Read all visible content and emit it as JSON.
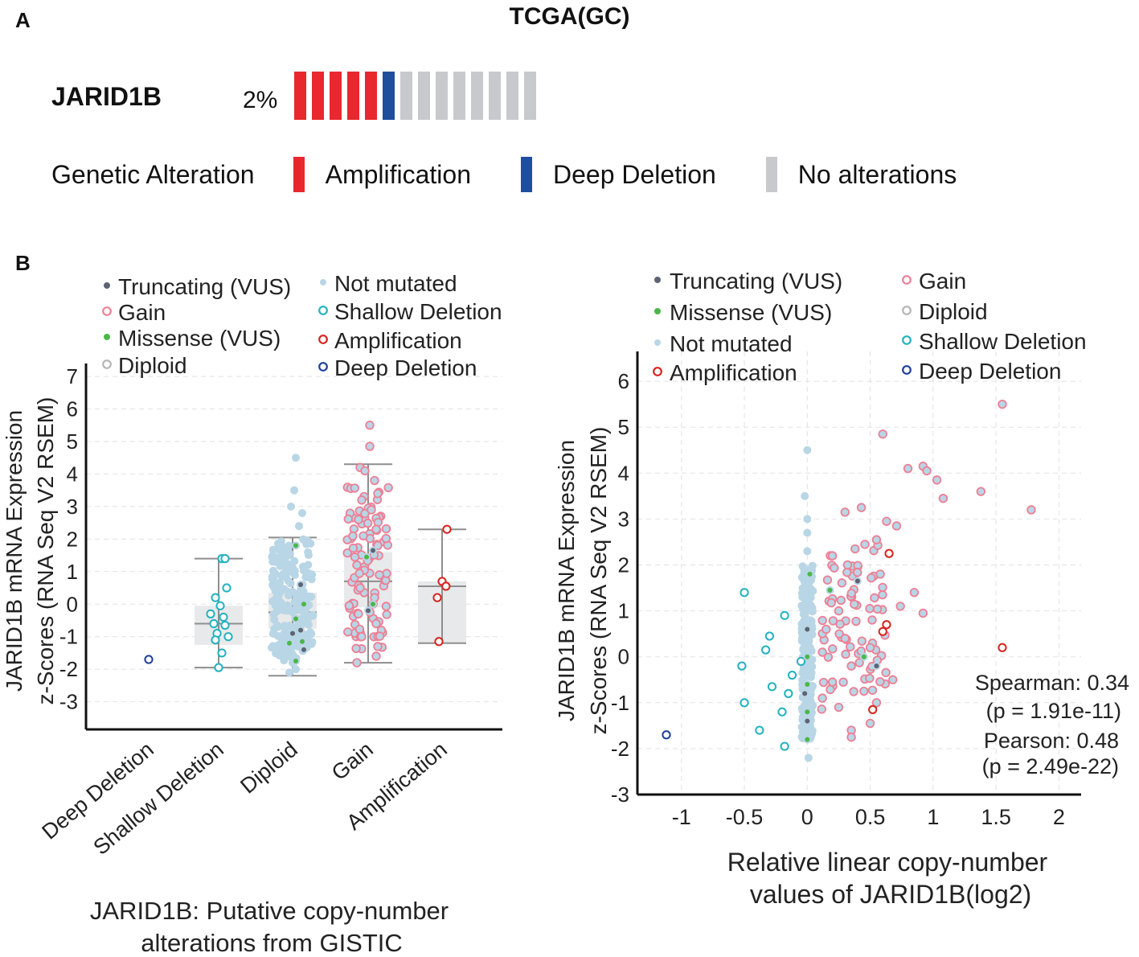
{
  "figure_title": "TCGA(GC)",
  "panels": {
    "a": "A",
    "b": "B"
  },
  "oncoprint": {
    "gene": "JARID1B",
    "percent": "2%",
    "bars": [
      "amplification",
      "amplification",
      "amplification",
      "amplification",
      "amplification",
      "deep_deletion",
      "none",
      "none",
      "none",
      "none",
      "none",
      "none",
      "none",
      "none"
    ],
    "legend_title": "Genetic Alteration",
    "legend": [
      {
        "label": "Amplification",
        "key": "amplification"
      },
      {
        "label": "Deep Deletion",
        "key": "deep_deletion"
      },
      {
        "label": "No alterations",
        "key": "none"
      }
    ]
  },
  "colors": {
    "amplification": "#e8282e",
    "deep_deletion": "#1f4e9c",
    "none": "#c8c9cd",
    "gain": "#ee7f94",
    "shallow": "#22b2bf",
    "diploid": "#b4b4b4",
    "not_mutated": "#b9d6e6",
    "truncating": "#5e6372",
    "missense": "#4bb748",
    "amp_open": "#d9221d",
    "deep_open": "#1c3f9c"
  },
  "chart_data": [
    {
      "type": "box",
      "id": "left",
      "ylabel": [
        "JARID1B mRNA Expression",
        "z-Scores (RNA Seq V2 RSEM)"
      ],
      "xlabel": [
        "JARID1B: Putative copy-number",
        "alterations from GISTIC"
      ],
      "ylim": [
        -3.85,
        7.15
      ],
      "yticks": [
        -3,
        -2,
        -1,
        0,
        1,
        2,
        3,
        4,
        5,
        6,
        7
      ],
      "categories": [
        "Deep Deletion",
        "Shallow Deletion",
        "Diploid",
        "Gain",
        "Amplification"
      ],
      "legend": [
        {
          "label": "Truncating (VUS)",
          "key": "truncating",
          "style": "dot"
        },
        {
          "label": "Gain",
          "key": "gain",
          "style": "ring"
        },
        {
          "label": "Missense (VUS)",
          "key": "missense",
          "style": "dot"
        },
        {
          "label": "Diploid",
          "key": "diploid",
          "style": "ring"
        },
        {
          "label": "Not mutated",
          "key": "not_mutated",
          "style": "dot"
        },
        {
          "label": "Shallow Deletion",
          "key": "shallow",
          "style": "ring"
        },
        {
          "label": "Amplification",
          "key": "amp_open",
          "style": "ring"
        },
        {
          "label": "Deep Deletion",
          "key": "deep_open",
          "style": "ring"
        }
      ],
      "boxes": [
        null,
        {
          "q1": -1.25,
          "median": -0.6,
          "q3": -0.05,
          "lo": -1.95,
          "hi": 1.4
        },
        {
          "q1": -0.75,
          "median": -0.25,
          "q3": 0.35,
          "lo": -2.2,
          "hi": 2.05
        },
        {
          "q1": -0.1,
          "median": 0.7,
          "q3": 1.6,
          "lo": -1.8,
          "hi": 4.3
        },
        {
          "q1": -1.2,
          "median": 0.55,
          "q3": 0.7,
          "lo": -1.2,
          "hi": 2.3
        }
      ],
      "points": [
        {
          "cat": 0,
          "dx": 0,
          "y": -1.7,
          "k": "deep_open"
        },
        {
          "cat": 1,
          "dx": 0.1,
          "y": 1.4,
          "k": "shallow"
        },
        {
          "cat": 1,
          "dx": 0.2,
          "y": 1.4,
          "k": "shallow"
        },
        {
          "cat": 1,
          "dx": 0.25,
          "y": 0.5,
          "k": "shallow"
        },
        {
          "cat": 1,
          "dx": -0.1,
          "y": 0.2,
          "k": "shallow"
        },
        {
          "cat": 1,
          "dx": 0.05,
          "y": -0.05,
          "k": "shallow"
        },
        {
          "cat": 1,
          "dx": -0.25,
          "y": -0.3,
          "k": "shallow"
        },
        {
          "cat": 1,
          "dx": 0.15,
          "y": -0.4,
          "k": "shallow"
        },
        {
          "cat": 1,
          "dx": -0.15,
          "y": -0.6,
          "k": "shallow"
        },
        {
          "cat": 1,
          "dx": 0.2,
          "y": -0.65,
          "k": "shallow"
        },
        {
          "cat": 1,
          "dx": -0.05,
          "y": -0.9,
          "k": "shallow"
        },
        {
          "cat": 1,
          "dx": 0.3,
          "y": -1.0,
          "k": "shallow"
        },
        {
          "cat": 1,
          "dx": -0.1,
          "y": -1.1,
          "k": "shallow"
        },
        {
          "cat": 1,
          "dx": 0.1,
          "y": -1.5,
          "k": "shallow"
        },
        {
          "cat": 1,
          "dx": 0.0,
          "y": -1.95,
          "k": "shallow"
        },
        {
          "cat": 2,
          "dx": 0.1,
          "y": 4.5,
          "k": "not_mutated"
        },
        {
          "cat": 2,
          "dx": 0.05,
          "y": 3.5,
          "k": "not_mutated"
        },
        {
          "cat": 2,
          "dx": -0.05,
          "y": 3.0,
          "k": "not_mutated"
        },
        {
          "cat": 2,
          "dx": 0.3,
          "y": 2.8,
          "k": "not_mutated"
        },
        {
          "cat": 2,
          "dx": 0.2,
          "y": 2.4,
          "k": "not_mutated"
        },
        {
          "cat": 2,
          "dx": 0.0,
          "y": -1.8,
          "k": "not_mutated"
        },
        {
          "cat": 2,
          "dx": -0.1,
          "y": -2.1,
          "k": "not_mutated"
        },
        {
          "cat": 2,
          "dx": 0.1,
          "y": -2.0,
          "k": "not_mutated"
        },
        {
          "cat": 2,
          "dx": 0.1,
          "y": 1.8,
          "k": "missense"
        },
        {
          "cat": 2,
          "dx": 0.35,
          "y": 0.0,
          "k": "missense"
        },
        {
          "cat": 2,
          "dx": 0.1,
          "y": -0.45,
          "k": "missense"
        },
        {
          "cat": 2,
          "dx": 0.2,
          "y": -0.8,
          "k": "missense"
        },
        {
          "cat": 2,
          "dx": -0.1,
          "y": -1.2,
          "k": "missense"
        },
        {
          "cat": 2,
          "dx": 0.3,
          "y": -1.15,
          "k": "missense"
        },
        {
          "cat": 2,
          "dx": 0.1,
          "y": -1.75,
          "k": "missense"
        },
        {
          "cat": 2,
          "dx": 0.25,
          "y": 0.6,
          "k": "truncating"
        },
        {
          "cat": 2,
          "dx": 0.0,
          "y": -0.9,
          "k": "truncating"
        },
        {
          "cat": 2,
          "dx": 0.25,
          "y": -0.8,
          "k": "truncating"
        },
        {
          "cat": 2,
          "dx": 0.35,
          "y": -1.4,
          "k": "truncating"
        },
        {
          "cat": 3,
          "dx": 0.05,
          "y": 5.5,
          "k": "gain"
        },
        {
          "cat": 3,
          "dx": 0.05,
          "y": 4.85,
          "k": "gain"
        },
        {
          "cat": 3,
          "dx": -0.25,
          "y": 4.2,
          "k": "gain"
        },
        {
          "cat": 3,
          "dx": -0.1,
          "y": 4.1,
          "k": "gain"
        },
        {
          "cat": 3,
          "dx": 0.2,
          "y": 3.8,
          "k": "gain"
        },
        {
          "cat": 3,
          "dx": 0.3,
          "y": 3.4,
          "k": "gain"
        },
        {
          "cat": 3,
          "dx": -0.2,
          "y": 3.2,
          "k": "gain"
        },
        {
          "cat": 3,
          "dx": 0.1,
          "y": 2.9,
          "k": "gain"
        },
        {
          "cat": 3,
          "dx": -0.3,
          "y": 2.6,
          "k": "gain"
        },
        {
          "cat": 3,
          "dx": 0.25,
          "y": 2.3,
          "k": "gain"
        },
        {
          "cat": 3,
          "dx": -0.15,
          "y": 2.1,
          "k": "gain"
        },
        {
          "cat": 3,
          "dx": 0.3,
          "y": 1.8,
          "k": "gain"
        },
        {
          "cat": 3,
          "dx": -0.35,
          "y": 1.2,
          "k": "gain"
        },
        {
          "cat": 3,
          "dx": 0.35,
          "y": 0.9,
          "k": "gain"
        },
        {
          "cat": 3,
          "dx": -0.25,
          "y": 0.5,
          "k": "gain"
        },
        {
          "cat": 3,
          "dx": 0.2,
          "y": 0.2,
          "k": "gain"
        },
        {
          "cat": 3,
          "dx": -0.3,
          "y": -0.3,
          "k": "gain"
        },
        {
          "cat": 3,
          "dx": 0.25,
          "y": -0.6,
          "k": "gain"
        },
        {
          "cat": 3,
          "dx": -0.2,
          "y": -1.0,
          "k": "gain"
        },
        {
          "cat": 3,
          "dx": 0.3,
          "y": -1.3,
          "k": "gain"
        },
        {
          "cat": 3,
          "dx": 0.25,
          "y": -1.6,
          "k": "gain"
        },
        {
          "cat": 3,
          "dx": -0.35,
          "y": -1.8,
          "k": "gain"
        },
        {
          "cat": 3,
          "dx": -0.05,
          "y": 1.45,
          "k": "missense"
        },
        {
          "cat": 3,
          "dx": 0.15,
          "y": 0.0,
          "k": "missense"
        },
        {
          "cat": 3,
          "dx": 0.15,
          "y": 1.65,
          "k": "truncating"
        },
        {
          "cat": 3,
          "dx": 0.0,
          "y": -0.2,
          "k": "truncating"
        },
        {
          "cat": 4,
          "dx": 0.15,
          "y": 2.3,
          "k": "amp_open"
        },
        {
          "cat": 4,
          "dx": 0.0,
          "y": 0.7,
          "k": "amp_open"
        },
        {
          "cat": 4,
          "dx": 0.12,
          "y": 0.55,
          "k": "amp_open"
        },
        {
          "cat": 4,
          "dx": -0.15,
          "y": 0.2,
          "k": "amp_open"
        },
        {
          "cat": 4,
          "dx": -0.1,
          "y": -1.15,
          "k": "amp_open"
        }
      ]
    },
    {
      "type": "scatter",
      "id": "right",
      "ylabel": [
        "JARID1B mRNA Expression",
        "z-Scores (RNA Seq V2 RSEM)"
      ],
      "xlabel": [
        "Relative linear copy-number",
        "values of JARID1B(log2)"
      ],
      "xlim": [
        -1.35,
        2.4
      ],
      "ylim": [
        -3.0,
        6.65
      ],
      "xticks": [
        -1,
        -0.5,
        0,
        0.5,
        1,
        1.5,
        2
      ],
      "xticklabels": [
        "-1",
        "-0.5",
        "0",
        "0.5",
        "1",
        "1.5",
        "2"
      ],
      "yticks": [
        -3,
        -2,
        -1,
        0,
        1,
        2,
        3,
        4,
        5,
        6
      ],
      "legend": [
        {
          "label": "Truncating (VUS)",
          "key": "truncating",
          "style": "dot"
        },
        {
          "label": "Missense (VUS)",
          "key": "missense",
          "style": "dot"
        },
        {
          "label": "Not mutated",
          "key": "not_mutated",
          "style": "dot"
        },
        {
          "label": "Amplification",
          "key": "amp_open",
          "style": "ring"
        },
        {
          "label": "Gain",
          "key": "gain",
          "style": "ring"
        },
        {
          "label": "Diploid",
          "key": "diploid",
          "style": "ring"
        },
        {
          "label": "Shallow Deletion",
          "key": "shallow",
          "style": "ring"
        },
        {
          "label": "Deep Deletion",
          "key": "deep_open",
          "style": "ring"
        }
      ],
      "stats": [
        "Spearman: 0.34",
        "(p = 1.91e-11)",
        "Pearson: 0.48",
        "(p = 2.49e-22)"
      ],
      "points": [
        {
          "x": -1.12,
          "y": -1.7,
          "k": "deep_open"
        },
        {
          "x": -0.5,
          "y": 1.4,
          "k": "shallow"
        },
        {
          "x": -0.3,
          "y": 0.45,
          "k": "shallow"
        },
        {
          "x": -0.18,
          "y": 0.9,
          "k": "shallow"
        },
        {
          "x": -0.33,
          "y": 0.15,
          "k": "shallow"
        },
        {
          "x": -0.52,
          "y": -0.2,
          "k": "shallow"
        },
        {
          "x": -0.05,
          "y": -0.1,
          "k": "shallow"
        },
        {
          "x": -0.12,
          "y": -0.4,
          "k": "shallow"
        },
        {
          "x": -0.15,
          "y": -0.8,
          "k": "shallow"
        },
        {
          "x": -0.5,
          "y": -1.0,
          "k": "shallow"
        },
        {
          "x": -0.38,
          "y": -1.6,
          "k": "shallow"
        },
        {
          "x": -0.2,
          "y": -1.2,
          "k": "shallow"
        },
        {
          "x": -0.18,
          "y": -1.95,
          "k": "shallow"
        },
        {
          "x": -0.28,
          "y": -0.65,
          "k": "shallow"
        },
        {
          "x": 0.0,
          "y": 4.5,
          "k": "not_mutated"
        },
        {
          "x": -0.02,
          "y": 3.5,
          "k": "not_mutated"
        },
        {
          "x": 0.0,
          "y": 3.0,
          "k": "not_mutated"
        },
        {
          "x": 0.0,
          "y": 2.7,
          "k": "not_mutated"
        },
        {
          "x": 0.0,
          "y": 2.3,
          "k": "not_mutated"
        },
        {
          "x": 0.01,
          "y": -2.2,
          "k": "not_mutated"
        },
        {
          "x": 0.02,
          "y": -1.6,
          "k": "not_mutated"
        },
        {
          "x": 0.02,
          "y": 1.8,
          "k": "missense"
        },
        {
          "x": 0.0,
          "y": 0.0,
          "k": "missense"
        },
        {
          "x": 0.0,
          "y": -0.6,
          "k": "missense"
        },
        {
          "x": 0.0,
          "y": -1.2,
          "k": "missense"
        },
        {
          "x": 0.0,
          "y": -1.8,
          "k": "missense"
        },
        {
          "x": 0.18,
          "y": 1.45,
          "k": "missense"
        },
        {
          "x": 0.45,
          "y": 0.0,
          "k": "missense"
        },
        {
          "x": 1.55,
          "y": 5.5,
          "k": "missense"
        },
        {
          "x": 0.0,
          "y": 0.6,
          "k": "truncating"
        },
        {
          "x": -0.02,
          "y": -0.8,
          "k": "truncating"
        },
        {
          "x": 0.0,
          "y": -1.4,
          "k": "truncating"
        },
        {
          "x": 0.4,
          "y": 1.65,
          "k": "truncating"
        },
        {
          "x": 0.55,
          "y": -0.2,
          "k": "truncating"
        },
        {
          "x": 1.55,
          "y": 5.5,
          "k": "gain"
        },
        {
          "x": 0.6,
          "y": 4.85,
          "k": "gain"
        },
        {
          "x": 0.8,
          "y": 4.1,
          "k": "gain"
        },
        {
          "x": 0.92,
          "y": 4.15,
          "k": "gain"
        },
        {
          "x": 0.95,
          "y": 4.05,
          "k": "gain"
        },
        {
          "x": 1.03,
          "y": 3.85,
          "k": "gain"
        },
        {
          "x": 1.08,
          "y": 3.45,
          "k": "gain"
        },
        {
          "x": 1.38,
          "y": 3.6,
          "k": "gain"
        },
        {
          "x": 1.78,
          "y": 3.2,
          "k": "gain"
        },
        {
          "x": 0.3,
          "y": 3.15,
          "k": "gain"
        },
        {
          "x": 0.43,
          "y": 3.25,
          "k": "gain"
        },
        {
          "x": 0.63,
          "y": 2.95,
          "k": "gain"
        },
        {
          "x": 0.71,
          "y": 2.85,
          "k": "gain"
        },
        {
          "x": 0.55,
          "y": 2.55,
          "k": "gain"
        },
        {
          "x": 0.38,
          "y": 2.35,
          "k": "gain"
        },
        {
          "x": 0.2,
          "y": 2.2,
          "k": "gain"
        },
        {
          "x": 0.32,
          "y": 2.0,
          "k": "gain"
        },
        {
          "x": 0.58,
          "y": 1.8,
          "k": "gain"
        },
        {
          "x": 0.85,
          "y": 1.4,
          "k": "gain"
        },
        {
          "x": 0.74,
          "y": 1.1,
          "k": "gain"
        },
        {
          "x": 0.92,
          "y": 0.95,
          "k": "gain"
        },
        {
          "x": 0.25,
          "y": 1.0,
          "k": "gain"
        },
        {
          "x": 0.15,
          "y": 0.6,
          "k": "gain"
        },
        {
          "x": 0.3,
          "y": 0.4,
          "k": "gain"
        },
        {
          "x": 0.5,
          "y": 0.2,
          "k": "gain"
        },
        {
          "x": 0.12,
          "y": 0.1,
          "k": "gain"
        },
        {
          "x": 0.35,
          "y": -0.2,
          "k": "gain"
        },
        {
          "x": 0.2,
          "y": -0.55,
          "k": "gain"
        },
        {
          "x": 0.45,
          "y": -0.75,
          "k": "gain"
        },
        {
          "x": 0.68,
          "y": -0.5,
          "k": "gain"
        },
        {
          "x": 0.55,
          "y": -1.0,
          "k": "gain"
        },
        {
          "x": 0.25,
          "y": -1.1,
          "k": "gain"
        },
        {
          "x": 0.5,
          "y": -1.45,
          "k": "gain"
        },
        {
          "x": 0.35,
          "y": -1.6,
          "k": "gain"
        },
        {
          "x": 0.35,
          "y": -1.75,
          "k": "gain"
        },
        {
          "x": 0.12,
          "y": -0.9,
          "k": "gain"
        },
        {
          "x": 0.65,
          "y": 2.25,
          "k": "amp_open"
        },
        {
          "x": 0.63,
          "y": 0.7,
          "k": "amp_open"
        },
        {
          "x": 0.6,
          "y": 0.55,
          "k": "amp_open"
        },
        {
          "x": 1.55,
          "y": 0.2,
          "k": "amp_open"
        },
        {
          "x": 0.52,
          "y": -1.15,
          "k": "amp_open"
        }
      ]
    }
  ]
}
